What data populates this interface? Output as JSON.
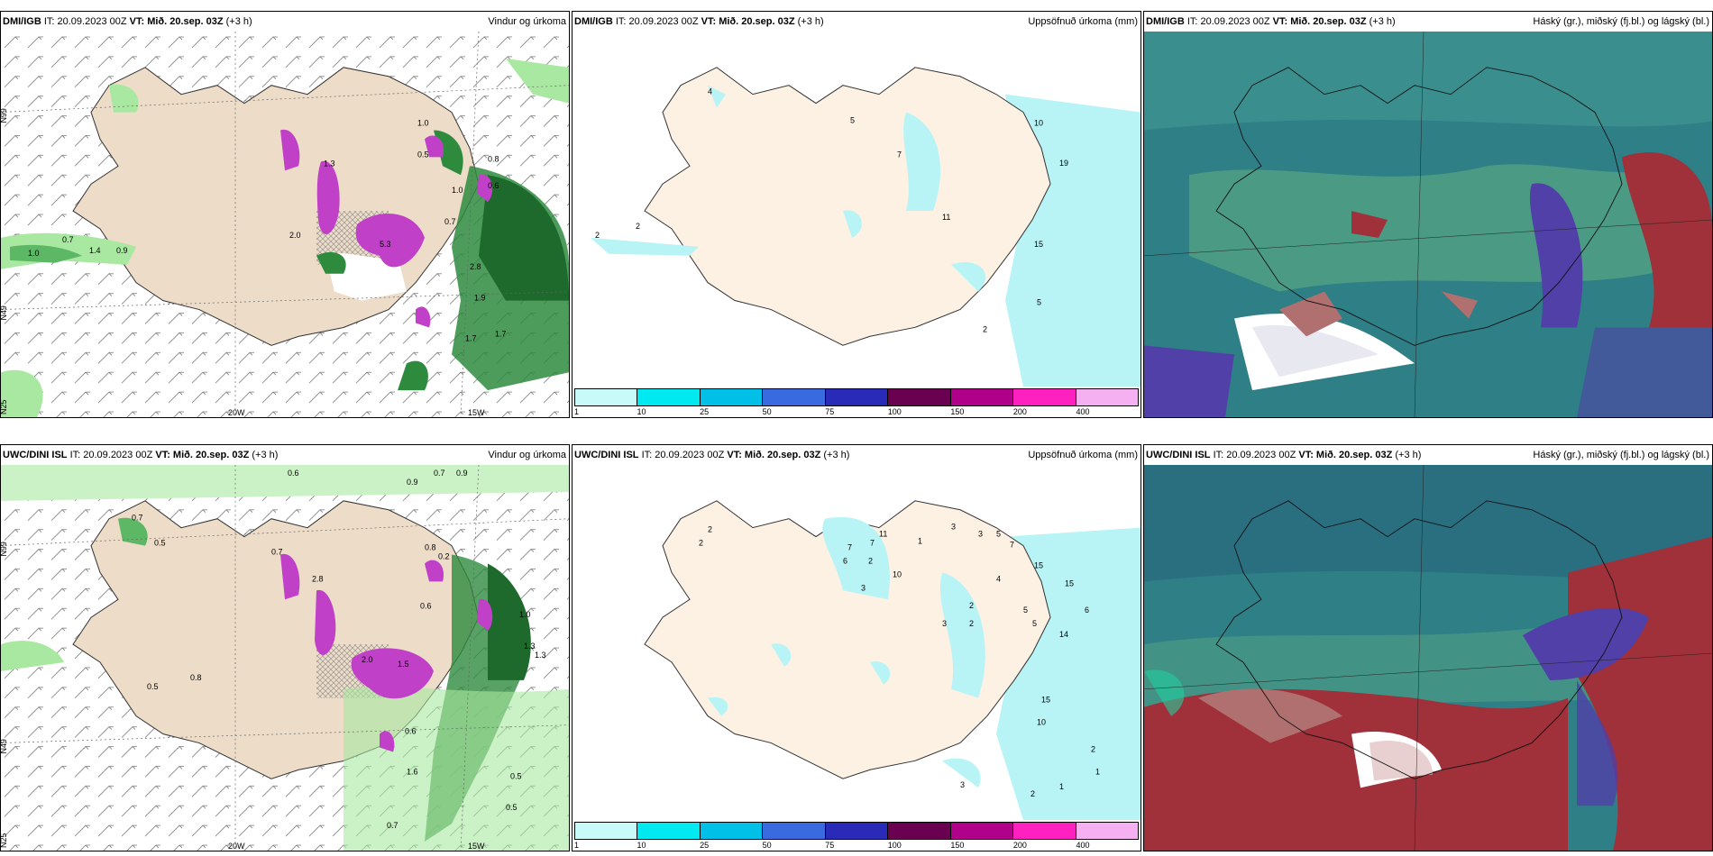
{
  "panels": [
    {
      "model": "DMI/IGB",
      "it": "IT: 20.09.2023 00Z",
      "vt_label": "VT:",
      "vt": "Mið. 20.sep. 03Z",
      "lead": "(+3 h)",
      "title": "Vindur og úrkoma"
    },
    {
      "model": "DMI/IGB",
      "it": "IT: 20.09.2023 00Z",
      "vt_label": "VT:",
      "vt": "Mið. 20.sep. 03Z",
      "lead": "(+3 h)",
      "title": "Uppsöfnuð úrkoma (mm)"
    },
    {
      "model": "DMI/IGB",
      "it": "IT: 20.09.2023 00Z",
      "vt_label": "VT:",
      "vt": "Mið. 20.sep. 03Z",
      "lead": "(+3 h)",
      "title": "Háský (gr.), miðský (fj.bl.) og lágský (bl.)"
    },
    {
      "model": "UWC/DINI ISL",
      "it": "IT: 20.09.2023 00Z",
      "vt_label": "VT:",
      "vt": "Mið. 20.sep. 03Z",
      "lead": "(+3 h)",
      "title": "Vindur og úrkoma"
    },
    {
      "model": "UWC/DINI ISL",
      "it": "IT: 20.09.2023 00Z",
      "vt_label": "VT:",
      "vt": "Mið. 20.sep. 03Z",
      "lead": "(+3 h)",
      "title": "Uppsöfnuð úrkoma (mm)"
    },
    {
      "model": "UWC/DINI ISL",
      "it": "IT: 20.09.2023 00Z",
      "vt_label": "VT:",
      "vt": "Mið. 20.sep. 03Z",
      "lead": "(+3 h)",
      "title": "Háský (gr.), miðský (fj.bl.) og lágský (bl.)"
    }
  ],
  "axis": {
    "lon_left": "20W",
    "lon_right": "15W",
    "lat_top": "N99",
    "lat_mid": "N49",
    "lat_bot": "N25"
  },
  "colorbar": {
    "labels": [
      "1",
      "10",
      "25",
      "50",
      "75",
      "100",
      "150",
      "200",
      "400"
    ],
    "colors": [
      "#c8fafa",
      "#00e8f0",
      "#00c0e8",
      "#3a6ae0",
      "#2a2ab8",
      "#6a0050",
      "#b0008a",
      "#ff20c0",
      "#f4b0f0"
    ]
  },
  "wind_precip_top_labels": [
    "1.0",
    "0.7",
    "1.4",
    "0.9",
    "2.0",
    "5.3",
    "1.3",
    "1.0",
    "0.5",
    "1.0",
    "0.8",
    "0.7",
    "1.7",
    "1.7",
    "1.9",
    "2.8",
    "0.6"
  ],
  "wind_precip_bot_labels": [
    "0.6",
    "0.9",
    "0.7",
    "0.9",
    "0.7",
    "0.5",
    "2.0",
    "2.8",
    "0.6",
    "0.8",
    "1.5",
    "0.5",
    "0.7",
    "1.6",
    "1.3",
    "0.5",
    "0.5",
    "1.0",
    "0.8",
    "0.2",
    "0.6",
    "0.7",
    "1.3"
  ],
  "accum_top_labels": [
    "2",
    "2",
    "4",
    "5",
    "7",
    "10",
    "15",
    "19",
    "11",
    "2",
    "5"
  ],
  "accum_bot_labels": [
    "3",
    "2",
    "2",
    "7",
    "7",
    "6",
    "2",
    "10",
    "3",
    "11",
    "1",
    "3",
    "5",
    "7",
    "15",
    "15",
    "4",
    "6",
    "2",
    "5",
    "3",
    "2",
    "5",
    "10",
    "14",
    "15",
    "2",
    "1",
    "2",
    "1",
    "3"
  ],
  "colors": {
    "land": "#fdf1e4",
    "land_wind": "#ecdcc8",
    "ocean_light": "#b8f4f6",
    "precip_green": "#2e8b3e",
    "precip_light": "#a8e8a0",
    "precip_magenta": "#c040c8",
    "cloud_teal": "#2f7f86",
    "cloud_green": "#4a9a84",
    "cloud_red": "#a0303a",
    "cloud_purple": "#5040a8",
    "cloud_pink": "#b07070"
  }
}
